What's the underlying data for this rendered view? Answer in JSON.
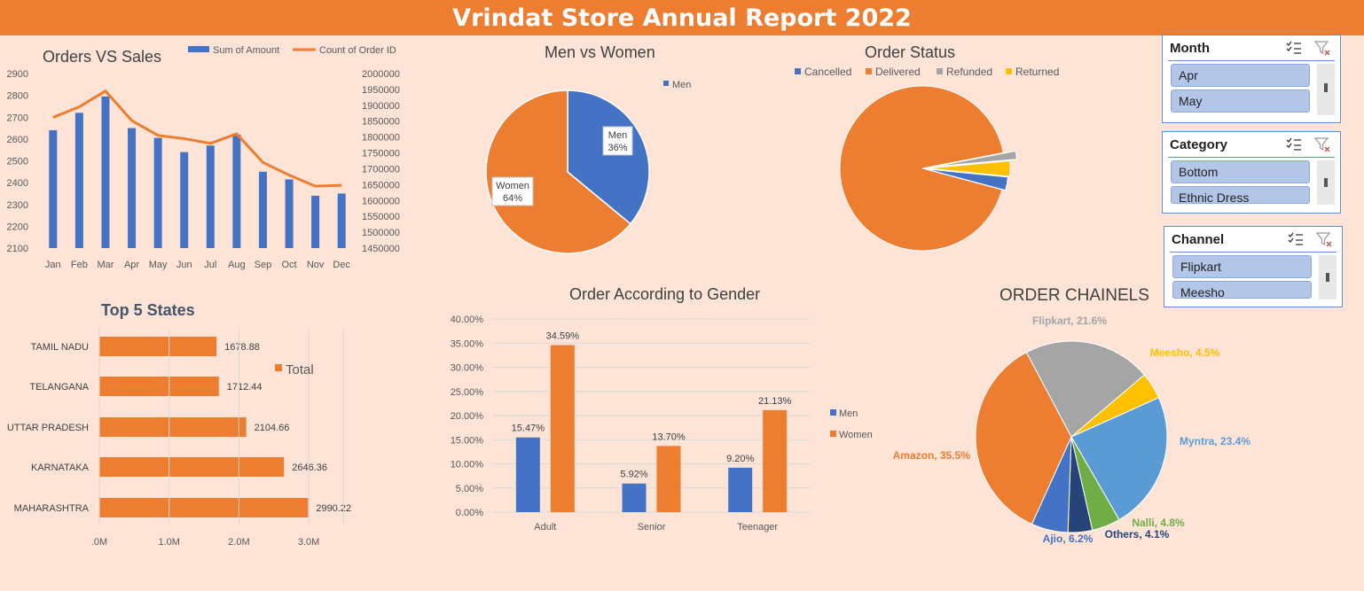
{
  "report": {
    "title": "Vrindat Store Annual Report 2022"
  },
  "colors": {
    "orange": "#ed7d31",
    "blue": "#4472c4",
    "gray": "#a5a5a5",
    "yellow": "#ffc000",
    "lightblue": "#5b9bd5",
    "green": "#70ad47",
    "navy": "#264478",
    "bg": "#fde4d6"
  },
  "slicers": [
    {
      "title": "Month",
      "items": [
        "Apr",
        "May"
      ]
    },
    {
      "title": "Category",
      "items": [
        "Bottom",
        "Ethnic Dress"
      ]
    },
    {
      "title": "Channel",
      "items": [
        "Flipkart",
        "Meesho"
      ]
    }
  ],
  "chart_data": [
    {
      "id": "orders_vs_sales",
      "type": "bar+line",
      "title": "Orders VS Sales",
      "categories": [
        "Jan",
        "Feb",
        "Mar",
        "Apr",
        "May",
        "Jun",
        "Jul",
        "Aug",
        "Sep",
        "Oct",
        "Nov",
        "Dec"
      ],
      "series": [
        {
          "name": "Sum of Amount",
          "type": "bar",
          "axis": "left",
          "color": "#4472c4",
          "values": [
            2640,
            2720,
            2795,
            2650,
            2605,
            2540,
            2570,
            2620,
            2450,
            2415,
            2340,
            2350
          ]
        },
        {
          "name": "Count of Order ID",
          "type": "line",
          "axis": "right",
          "color": "#ed7d31",
          "values": [
            1862000,
            1895000,
            1945000,
            1852000,
            1805000,
            1795000,
            1780000,
            1810000,
            1720000,
            1680000,
            1645000,
            1648000
          ]
        }
      ],
      "yleft_ticks": [
        2900,
        2800,
        2700,
        2600,
        2500,
        2400,
        2300,
        2200,
        2100
      ],
      "ylim_left": [
        2100,
        2900
      ],
      "yright_ticks": [
        2000000,
        1950000,
        1900000,
        1850000,
        1800000,
        1750000,
        1700000,
        1650000,
        1600000,
        1550000,
        1500000,
        1450000
      ],
      "ylim_right": [
        1450000,
        2000000
      ]
    },
    {
      "id": "men_vs_women",
      "type": "pie",
      "title": "Men vs Women",
      "legend": [
        "Men"
      ],
      "slices": [
        {
          "label": "Men",
          "value": 36,
          "pct_label": "36%",
          "color": "#4472c4"
        },
        {
          "label": "Women",
          "value": 64,
          "pct_label": "64%",
          "color": "#ed7d31"
        }
      ]
    },
    {
      "id": "order_status",
      "type": "pie",
      "title": "Order Status",
      "legend": [
        "Cancelled",
        "Delivered",
        "Refunded",
        "Returned"
      ],
      "slices": [
        {
          "label": "Cancelled",
          "value": 2.6,
          "color": "#4472c4"
        },
        {
          "label": "Delivered",
          "value": 92.8,
          "color": "#ed7d31"
        },
        {
          "label": "Refunded",
          "value": 1.6,
          "color": "#a5a5a5"
        },
        {
          "label": "Returned",
          "value": 3.0,
          "color": "#ffc000"
        }
      ]
    },
    {
      "id": "top5_states",
      "type": "bar",
      "orientation": "horizontal",
      "title": "Top 5 States",
      "legend": [
        "Total"
      ],
      "categories": [
        "TAMIL NADU",
        "TELANGANA",
        "UTTAR PRADESH",
        "KARNATAKA",
        "MAHARASHTRA"
      ],
      "values": [
        1678.88,
        1712.44,
        2104.66,
        2646.36,
        2990.22
      ],
      "value_labels": [
        "1678.88",
        "1712.44",
        "2104.66",
        "2646.36",
        "2990.22"
      ],
      "xlim": [
        0,
        3500
      ],
      "x_ticks": [
        ".0M",
        "1.0M",
        "2.0M",
        "3.0M"
      ]
    },
    {
      "id": "order_by_gender",
      "type": "bar",
      "title": "Order According to Gender",
      "categories": [
        "Adult",
        "Senior",
        "Teenager"
      ],
      "series": [
        {
          "name": "Men",
          "color": "#4472c4",
          "values": [
            15.47,
            5.92,
            9.2
          ],
          "labels": [
            "15.47%",
            "5.92%",
            "9.20%"
          ]
        },
        {
          "name": "Women",
          "color": "#ed7d31",
          "values": [
            34.59,
            13.7,
            21.13
          ],
          "labels": [
            "34.59%",
            "13.70%",
            "21.13%"
          ]
        }
      ],
      "ylim": [
        0,
        40
      ],
      "y_ticks": [
        "40.00%",
        "35.00%",
        "30.00%",
        "25.00%",
        "20.00%",
        "15.00%",
        "10.00%",
        "5.00%",
        "0.00%"
      ]
    },
    {
      "id": "order_channels",
      "type": "pie",
      "title": "ORDER CHAINELS",
      "slices": [
        {
          "label": "Flipkart, 21.6%",
          "value": 21.6,
          "color": "#a5a5a5"
        },
        {
          "label": "Meesho, 4.5%",
          "value": 4.5,
          "color": "#ffc000"
        },
        {
          "label": "Myntra, 23.4%",
          "value": 23.4,
          "color": "#5b9bd5"
        },
        {
          "label": "Nalli, 4.8%",
          "value": 4.8,
          "color": "#70ad47"
        },
        {
          "label": "Others, 4.1%",
          "value": 4.1,
          "color": "#264478"
        },
        {
          "label": "Ajio, 6.2%",
          "value": 6.2,
          "color": "#4472c4"
        },
        {
          "label": "Amazon, 35.5%",
          "value": 35.5,
          "color": "#ed7d31"
        }
      ]
    }
  ]
}
